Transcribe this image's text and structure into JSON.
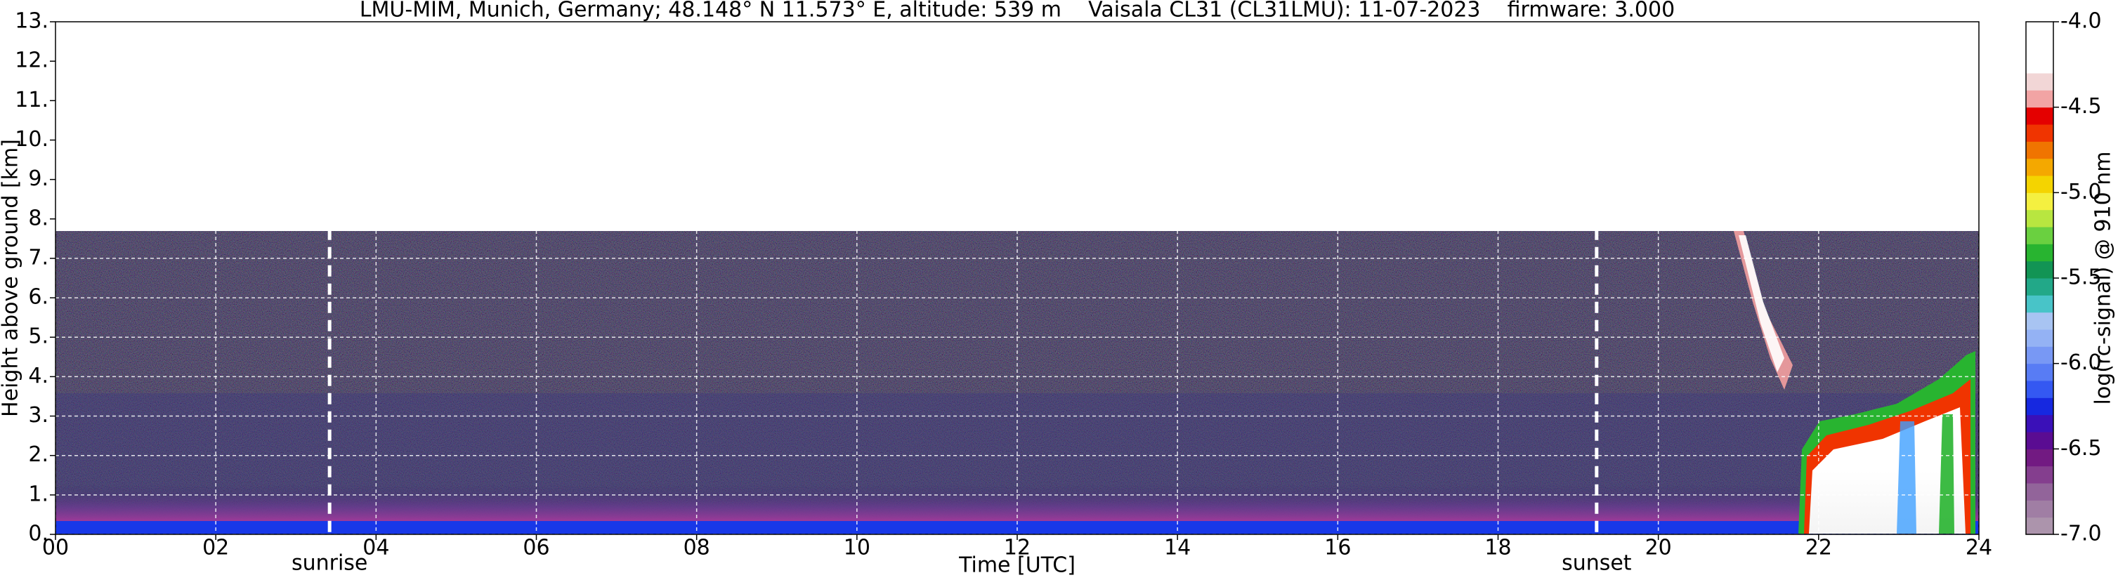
{
  "chart_data": {
    "type": "heatmap",
    "title": "LMU-MIM, Munich, Germany; 48.148° N 11.573° E, altitude: 539 m    Vaisala CL31 (CL31LMU): 11-07-2023    firmware: 3.000",
    "x_label": "Time [UTC]",
    "y_label": "Height above ground [km]",
    "xlim": [
      0,
      24
    ],
    "xticks": [
      {
        "value": 0,
        "label": "00"
      },
      {
        "value": 2,
        "label": "02"
      },
      {
        "value": 4,
        "label": "04"
      },
      {
        "value": 6,
        "label": "06"
      },
      {
        "value": 8,
        "label": "08"
      },
      {
        "value": 10,
        "label": "10"
      },
      {
        "value": 12,
        "label": "12"
      },
      {
        "value": 14,
        "label": "14"
      },
      {
        "value": 16,
        "label": "16"
      },
      {
        "value": 18,
        "label": "18"
      },
      {
        "value": 20,
        "label": "20"
      },
      {
        "value": 22,
        "label": "22"
      },
      {
        "value": 24,
        "label": "24"
      }
    ],
    "ylim": [
      0,
      13
    ],
    "yticks": [
      {
        "value": 0,
        "label": "0."
      },
      {
        "value": 1,
        "label": "1."
      },
      {
        "value": 2,
        "label": "2."
      },
      {
        "value": 3,
        "label": "3."
      },
      {
        "value": 4,
        "label": "4."
      },
      {
        "value": 5,
        "label": "5."
      },
      {
        "value": 6,
        "label": "6."
      },
      {
        "value": 7,
        "label": "7."
      },
      {
        "value": 8,
        "label": "8."
      },
      {
        "value": 9,
        "label": "9."
      },
      {
        "value": 10,
        "label": "10."
      },
      {
        "value": 11,
        "label": "11."
      },
      {
        "value": 12,
        "label": "12."
      },
      {
        "value": 13,
        "label": "13."
      }
    ],
    "grid": true,
    "annotations": [
      {
        "label": "sunrise",
        "x": 3.42
      },
      {
        "label": "sunset",
        "x": 19.23
      }
    ],
    "colorbar": {
      "label": "log(rc-signal) @ 910 nm",
      "lim": [
        -7,
        -4
      ],
      "ticks": [
        {
          "value": -4,
          "label": "-4.0"
        },
        {
          "value": -4.5,
          "label": "-4.5"
        },
        {
          "value": -5,
          "label": "-5.0"
        },
        {
          "value": -5.5,
          "label": "-5.5"
        },
        {
          "value": -6,
          "label": "-6.0"
        },
        {
          "value": -6.5,
          "label": "-6.5"
        },
        {
          "value": -7,
          "label": "-7.0"
        }
      ],
      "colors": [
        "#ac94ac",
        "#a07ea4",
        "#92649a",
        "#843e8e",
        "#721a82",
        "#5a0c92",
        "#3a10b8",
        "#1628e0",
        "#3458f2",
        "#587cf4",
        "#7898f4",
        "#94b2f4",
        "#a8c4f2",
        "#48c4c8",
        "#22a888",
        "#129454",
        "#28b430",
        "#6ad040",
        "#b8e640",
        "#f4f040",
        "#f4d400",
        "#f4a800",
        "#f07400",
        "#f03400",
        "#e40000",
        "#f2a4a4",
        "#f2d6d6",
        "#ffffff",
        "#ffffff",
        "#ffffff"
      ]
    }
  }
}
